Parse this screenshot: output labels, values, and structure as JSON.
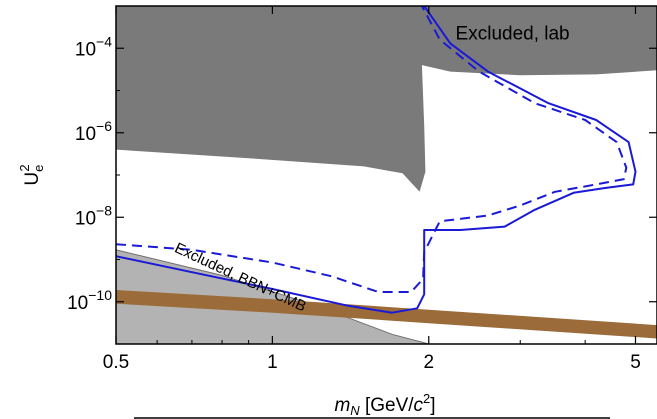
{
  "chart_data": {
    "type": "line",
    "xlabel": "m_N [GeV/c^2]",
    "ylabel": "U_e^2",
    "x_scale": "log",
    "y_scale": "log",
    "xlim": [
      0.5,
      5.5
    ],
    "ylim": [
      1e-11,
      0.001
    ],
    "x_ticks": [
      {
        "value": 0.5,
        "label": "0.5"
      },
      {
        "value": 1,
        "label": "1"
      },
      {
        "value": 2,
        "label": "2"
      },
      {
        "value": 5,
        "label": "5"
      }
    ],
    "y_ticks": [
      {
        "value": 0.0001,
        "exp": "-4"
      },
      {
        "value": 1e-06,
        "exp": "-6"
      },
      {
        "value": 1e-08,
        "exp": "-8"
      },
      {
        "value": 1e-10,
        "exp": "-10"
      }
    ],
    "regions": [
      {
        "label": "Excluded, lab",
        "color": "#7a7a7a",
        "boundary": [
          [
            0.5,
            4e-07
          ],
          [
            0.9,
            2.5e-07
          ],
          [
            1.5,
            1.6e-07
          ],
          [
            1.78,
            1.1e-07
          ],
          [
            1.92,
            4e-08
          ],
          [
            1.97,
            1.2e-07
          ],
          [
            1.96,
            1.5e-06
          ],
          [
            1.94,
            4e-05
          ],
          [
            2.2,
            2.8e-05
          ],
          [
            3.0,
            2.3e-05
          ],
          [
            4.2,
            2.4e-05
          ],
          [
            5.5,
            3e-05
          ]
        ]
      },
      {
        "label": "Excluded, BBN+CMB",
        "color": "#b3b3b3",
        "boundary": [
          [
            0.5,
            1.7e-09
          ],
          [
            0.8,
            4.2e-10
          ],
          [
            1.2,
            8.5e-11
          ],
          [
            1.7,
            1.7e-11
          ],
          [
            2.0,
            1e-11
          ]
        ]
      }
    ],
    "bands": [
      {
        "color": "#9c6b3a",
        "lower": [
          [
            0.5,
            9e-11
          ],
          [
            1.0,
            5.5e-11
          ],
          [
            2.0,
            3.1e-11
          ],
          [
            5.5,
            1.35e-11
          ]
        ],
        "upper": [
          [
            0.5,
            1.9e-10
          ],
          [
            1.0,
            1.15e-10
          ],
          [
            2.0,
            6.5e-11
          ],
          [
            5.5,
            2.8e-11
          ]
        ]
      }
    ],
    "series": [
      {
        "style": "solid",
        "color": "#1a1ad6",
        "points": [
          [
            0.5,
            1.2e-09
          ],
          [
            0.7,
            5e-10
          ],
          [
            1.0,
            2e-10
          ],
          [
            1.4,
            8e-11
          ],
          [
            1.7,
            5.5e-11
          ],
          [
            1.9,
            7e-11
          ],
          [
            1.96,
            1.5e-10
          ],
          [
            1.96,
            2.2e-09
          ],
          [
            1.96,
            5e-09
          ],
          [
            2.3,
            5e-09
          ],
          [
            2.8,
            6e-09
          ],
          [
            3.2,
            1.5e-08
          ],
          [
            3.8,
            3.8e-08
          ],
          [
            4.4,
            5e-08
          ],
          [
            4.95,
            6e-08
          ],
          [
            5.0,
            1.2e-07
          ],
          [
            4.85,
            6e-07
          ],
          [
            4.2,
            2e-06
          ],
          [
            3.4,
            5e-06
          ],
          [
            2.6,
            2.8e-05
          ],
          [
            2.2,
            0.00013
          ],
          [
            1.96,
            0.001
          ]
        ]
      },
      {
        "style": "dashed",
        "color": "#1a1ad6",
        "points": [
          [
            0.5,
            2.3e-09
          ],
          [
            0.7,
            1.7e-09
          ],
          [
            1.0,
            8.5e-10
          ],
          [
            1.3,
            4e-10
          ],
          [
            1.6,
            1.7e-10
          ],
          [
            1.85,
            1.7e-10
          ],
          [
            1.95,
            3.5e-10
          ],
          [
            1.96,
            1.5e-09
          ],
          [
            2.1,
            8e-09
          ],
          [
            2.6,
            1.1e-08
          ],
          [
            3.0,
            1.9e-08
          ],
          [
            3.5,
            4e-08
          ],
          [
            4.2,
            6e-08
          ],
          [
            4.75,
            8e-08
          ],
          [
            4.8,
            1.5e-07
          ],
          [
            4.6,
            6e-07
          ],
          [
            4.0,
            2e-06
          ],
          [
            3.2,
            5e-06
          ],
          [
            2.5,
            2.8e-05
          ],
          [
            2.1,
            0.00016
          ],
          [
            1.94,
            0.001
          ]
        ]
      }
    ],
    "annotations": [
      {
        "text": "Excluded, lab",
        "x": 2.9,
        "y": 0.00016
      },
      {
        "text": "Excluded, BBN+CMB",
        "x": 0.86,
        "y": 3e-10,
        "angle": 25
      }
    ]
  }
}
